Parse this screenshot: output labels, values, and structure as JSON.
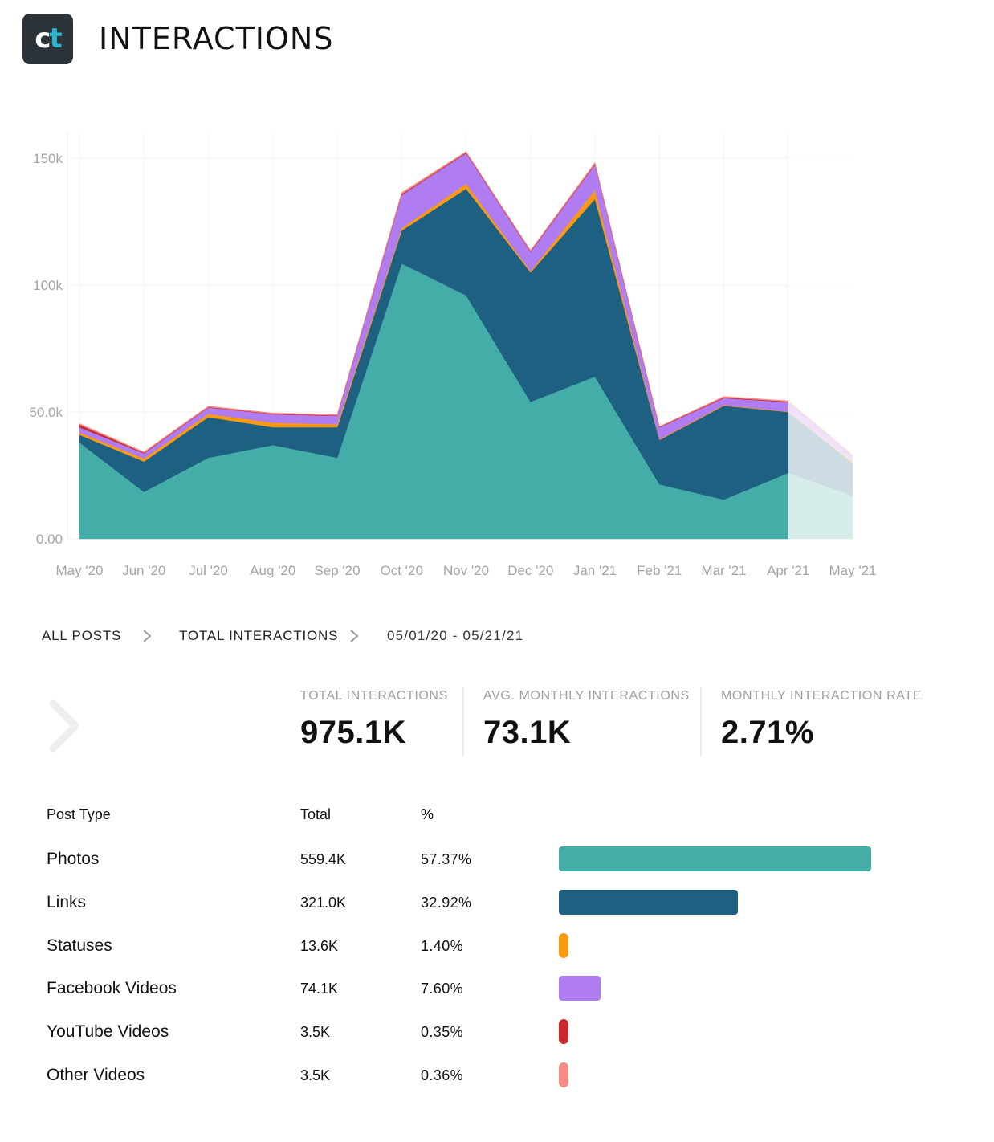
{
  "header": {
    "logo_c": "c",
    "logo_t": "t",
    "title": "INTERACTIONS"
  },
  "chart_data": {
    "type": "area",
    "stacked": true,
    "x": [
      "May '20",
      "Jun '20",
      "Jul '20",
      "Aug '20",
      "Sep '20",
      "Oct '20",
      "Nov '20",
      "Dec '20",
      "Jan '21",
      "Feb '21",
      "Mar '21",
      "Apr '21",
      "May '21"
    ],
    "y_ticks": [
      "0.00",
      "50.0k",
      "100k",
      "150k"
    ],
    "ylim": [
      0,
      160000
    ],
    "grid": true,
    "partial_last_period": true,
    "series": [
      {
        "name": "Photos",
        "color": "#45ada8",
        "values": [
          38000,
          18500,
          32000,
          37000,
          32000,
          108500,
          96000,
          54000,
          64000,
          21500,
          15500,
          26000,
          17000
        ]
      },
      {
        "name": "Links",
        "color": "#1e6081",
        "values": [
          3000,
          12000,
          16000,
          7000,
          12000,
          13000,
          42000,
          51000,
          70000,
          17500,
          37000,
          24000,
          13000
        ]
      },
      {
        "name": "Statuses",
        "color": "#f89a12",
        "values": [
          1000,
          1200,
          1300,
          1800,
          1200,
          1000,
          2000,
          600,
          3500,
          300,
          300,
          200,
          600
        ]
      },
      {
        "name": "Facebook Videos",
        "color": "#b07cf2",
        "values": [
          2000,
          2000,
          2500,
          3300,
          3300,
          13000,
          12000,
          7500,
          10000,
          4600,
          2700,
          3700,
          2000
        ]
      },
      {
        "name": "YouTube Videos",
        "color": "#c9282e",
        "values": [
          1000,
          300,
          200,
          200,
          200,
          400,
          300,
          300,
          300,
          200,
          300,
          200,
          200
        ]
      },
      {
        "name": "Other Videos",
        "color": "#f48b85",
        "values": [
          400,
          300,
          300,
          300,
          300,
          600,
          300,
          300,
          500,
          200,
          300,
          300,
          300
        ]
      }
    ]
  },
  "breadcrumb": {
    "item1": "ALL POSTS",
    "item2": "TOTAL INTERACTIONS",
    "date_range": "05/01/20 - 05/21/21"
  },
  "stats": [
    {
      "label": "TOTAL INTERACTIONS",
      "value": "975.1K"
    },
    {
      "label": "AVG. MONTHLY INTERACTIONS",
      "value": "73.1K"
    },
    {
      "label": "MONTHLY INTERACTION RATE",
      "value": "2.71%"
    }
  ],
  "table": {
    "headers": {
      "type": "Post Type",
      "total": "Total",
      "pct": "%"
    },
    "rows": [
      {
        "type": "Photos",
        "total": "559.4K",
        "pct": "57.37%",
        "share": 57.37,
        "color": "#45ada8"
      },
      {
        "type": "Links",
        "total": "321.0K",
        "pct": "32.92%",
        "share": 32.92,
        "color": "#1e6081"
      },
      {
        "type": "Statuses",
        "total": "13.6K",
        "pct": "1.40%",
        "share": 1.4,
        "color": "#f89a12"
      },
      {
        "type": "Facebook Videos",
        "total": "74.1K",
        "pct": "7.60%",
        "share": 7.6,
        "color": "#b07cf2"
      },
      {
        "type": "YouTube Videos",
        "total": "3.5K",
        "pct": "0.35%",
        "share": 0.35,
        "color": "#c9282e"
      },
      {
        "type": "Other Videos",
        "total": "3.5K",
        "pct": "0.36%",
        "share": 0.36,
        "color": "#f48b85"
      }
    ]
  }
}
